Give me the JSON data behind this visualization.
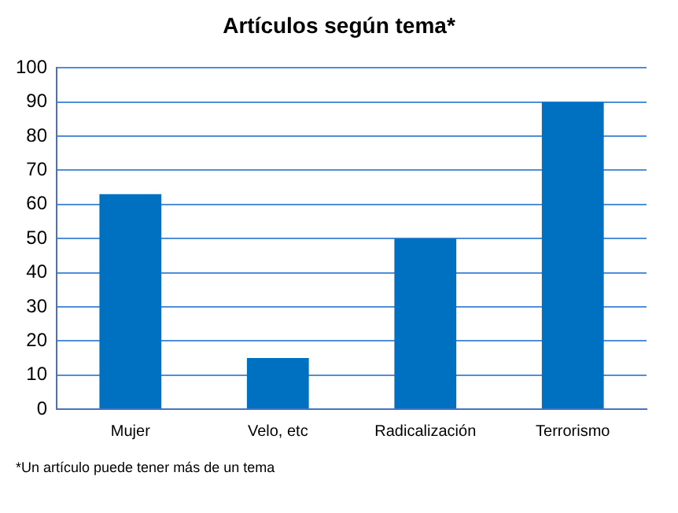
{
  "chart_data": {
    "type": "bar",
    "title": "Artículos según tema*",
    "categories": [
      "Mujer",
      "Velo, etc",
      "Radicalización",
      "Terrorismo"
    ],
    "values": [
      63,
      15,
      50,
      90
    ],
    "color": "#0070c0",
    "ylim": [
      0,
      100
    ],
    "yticks": [
      0,
      10,
      20,
      30,
      40,
      50,
      60,
      70,
      80,
      90,
      100
    ],
    "grid": "y",
    "annotations": [
      "*Un artículo puede tener más de un tema"
    ]
  }
}
